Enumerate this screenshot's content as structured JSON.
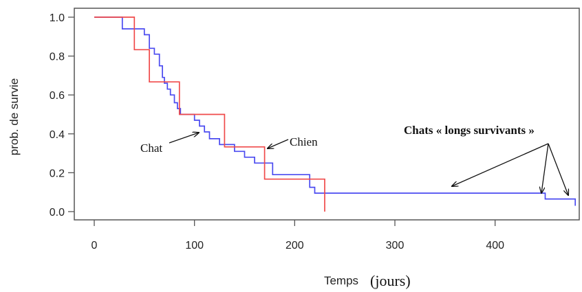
{
  "chart_data": {
    "type": "line",
    "ylabel": "prob. de survie",
    "xlabel": "Temps",
    "xlabel_unit": "(jours)",
    "xlim": [
      0,
      480
    ],
    "ylim": [
      0,
      1.0
    ],
    "x_ticks": [
      0,
      100,
      200,
      300,
      400
    ],
    "y_ticks": [
      "0.0",
      "0.2",
      "0.4",
      "0.6",
      "0.8",
      "1.0"
    ],
    "grid": false,
    "series": [
      {
        "name": "Chat",
        "color": "#4a4af0",
        "step": true,
        "x": [
          0,
          28,
          40,
          50,
          55,
          60,
          65,
          68,
          70,
          73,
          76,
          80,
          83,
          86,
          100,
          105,
          110,
          115,
          125,
          140,
          150,
          160,
          178,
          215,
          220,
          355,
          450,
          480
        ],
        "y": [
          1.0,
          0.94,
          0.94,
          0.91,
          0.84,
          0.81,
          0.75,
          0.69,
          0.66,
          0.63,
          0.6,
          0.56,
          0.53,
          0.5,
          0.47,
          0.44,
          0.41,
          0.375,
          0.345,
          0.31,
          0.28,
          0.25,
          0.19,
          0.125,
          0.095,
          0.095,
          0.065,
          0.03
        ]
      },
      {
        "name": "Chien",
        "color": "#f04a4a",
        "step": true,
        "x": [
          0,
          40,
          55,
          85,
          130,
          170,
          180,
          230
        ],
        "y": [
          1.0,
          0.833,
          0.667,
          0.5,
          0.333,
          0.167,
          0.167,
          0.0
        ]
      }
    ],
    "annotations": [
      {
        "id": "chat",
        "text": "Chat",
        "target_x": 106,
        "target_y": 0.4
      },
      {
        "id": "chien",
        "text": "Chien",
        "target_x": 172,
        "target_y": 0.32
      },
      {
        "id": "longs",
        "text": "Chats « longs survivants »",
        "targets": [
          [
            355,
            0.12
          ],
          [
            446,
            0.085
          ],
          [
            478,
            0.04
          ]
        ]
      }
    ]
  }
}
